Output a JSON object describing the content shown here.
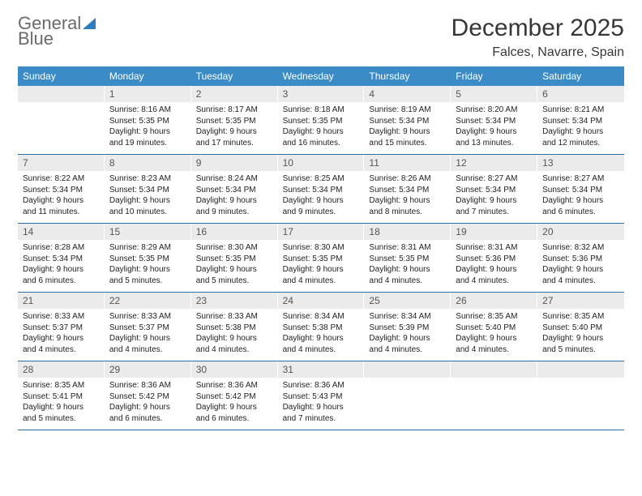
{
  "brand": {
    "part1": "General",
    "part2": "Blue"
  },
  "title": "December 2025",
  "location": "Falces, Navarre, Spain",
  "day_names": [
    "Sunday",
    "Monday",
    "Tuesday",
    "Wednesday",
    "Thursday",
    "Friday",
    "Saturday"
  ],
  "colors": {
    "header_bg": "#3b8bc7",
    "daynum_bg": "#ebebeb",
    "rule": "#2f6fa3"
  },
  "weeks": [
    [
      null,
      {
        "n": "1",
        "sr": "Sunrise: 8:16 AM",
        "ss": "Sunset: 5:35 PM",
        "d1": "Daylight: 9 hours",
        "d2": "and 19 minutes."
      },
      {
        "n": "2",
        "sr": "Sunrise: 8:17 AM",
        "ss": "Sunset: 5:35 PM",
        "d1": "Daylight: 9 hours",
        "d2": "and 17 minutes."
      },
      {
        "n": "3",
        "sr": "Sunrise: 8:18 AM",
        "ss": "Sunset: 5:35 PM",
        "d1": "Daylight: 9 hours",
        "d2": "and 16 minutes."
      },
      {
        "n": "4",
        "sr": "Sunrise: 8:19 AM",
        "ss": "Sunset: 5:34 PM",
        "d1": "Daylight: 9 hours",
        "d2": "and 15 minutes."
      },
      {
        "n": "5",
        "sr": "Sunrise: 8:20 AM",
        "ss": "Sunset: 5:34 PM",
        "d1": "Daylight: 9 hours",
        "d2": "and 13 minutes."
      },
      {
        "n": "6",
        "sr": "Sunrise: 8:21 AM",
        "ss": "Sunset: 5:34 PM",
        "d1": "Daylight: 9 hours",
        "d2": "and 12 minutes."
      }
    ],
    [
      {
        "n": "7",
        "sr": "Sunrise: 8:22 AM",
        "ss": "Sunset: 5:34 PM",
        "d1": "Daylight: 9 hours",
        "d2": "and 11 minutes."
      },
      {
        "n": "8",
        "sr": "Sunrise: 8:23 AM",
        "ss": "Sunset: 5:34 PM",
        "d1": "Daylight: 9 hours",
        "d2": "and 10 minutes."
      },
      {
        "n": "9",
        "sr": "Sunrise: 8:24 AM",
        "ss": "Sunset: 5:34 PM",
        "d1": "Daylight: 9 hours",
        "d2": "and 9 minutes."
      },
      {
        "n": "10",
        "sr": "Sunrise: 8:25 AM",
        "ss": "Sunset: 5:34 PM",
        "d1": "Daylight: 9 hours",
        "d2": "and 9 minutes."
      },
      {
        "n": "11",
        "sr": "Sunrise: 8:26 AM",
        "ss": "Sunset: 5:34 PM",
        "d1": "Daylight: 9 hours",
        "d2": "and 8 minutes."
      },
      {
        "n": "12",
        "sr": "Sunrise: 8:27 AM",
        "ss": "Sunset: 5:34 PM",
        "d1": "Daylight: 9 hours",
        "d2": "and 7 minutes."
      },
      {
        "n": "13",
        "sr": "Sunrise: 8:27 AM",
        "ss": "Sunset: 5:34 PM",
        "d1": "Daylight: 9 hours",
        "d2": "and 6 minutes."
      }
    ],
    [
      {
        "n": "14",
        "sr": "Sunrise: 8:28 AM",
        "ss": "Sunset: 5:34 PM",
        "d1": "Daylight: 9 hours",
        "d2": "and 6 minutes."
      },
      {
        "n": "15",
        "sr": "Sunrise: 8:29 AM",
        "ss": "Sunset: 5:35 PM",
        "d1": "Daylight: 9 hours",
        "d2": "and 5 minutes."
      },
      {
        "n": "16",
        "sr": "Sunrise: 8:30 AM",
        "ss": "Sunset: 5:35 PM",
        "d1": "Daylight: 9 hours",
        "d2": "and 5 minutes."
      },
      {
        "n": "17",
        "sr": "Sunrise: 8:30 AM",
        "ss": "Sunset: 5:35 PM",
        "d1": "Daylight: 9 hours",
        "d2": "and 4 minutes."
      },
      {
        "n": "18",
        "sr": "Sunrise: 8:31 AM",
        "ss": "Sunset: 5:35 PM",
        "d1": "Daylight: 9 hours",
        "d2": "and 4 minutes."
      },
      {
        "n": "19",
        "sr": "Sunrise: 8:31 AM",
        "ss": "Sunset: 5:36 PM",
        "d1": "Daylight: 9 hours",
        "d2": "and 4 minutes."
      },
      {
        "n": "20",
        "sr": "Sunrise: 8:32 AM",
        "ss": "Sunset: 5:36 PM",
        "d1": "Daylight: 9 hours",
        "d2": "and 4 minutes."
      }
    ],
    [
      {
        "n": "21",
        "sr": "Sunrise: 8:33 AM",
        "ss": "Sunset: 5:37 PM",
        "d1": "Daylight: 9 hours",
        "d2": "and 4 minutes."
      },
      {
        "n": "22",
        "sr": "Sunrise: 8:33 AM",
        "ss": "Sunset: 5:37 PM",
        "d1": "Daylight: 9 hours",
        "d2": "and 4 minutes."
      },
      {
        "n": "23",
        "sr": "Sunrise: 8:33 AM",
        "ss": "Sunset: 5:38 PM",
        "d1": "Daylight: 9 hours",
        "d2": "and 4 minutes."
      },
      {
        "n": "24",
        "sr": "Sunrise: 8:34 AM",
        "ss": "Sunset: 5:38 PM",
        "d1": "Daylight: 9 hours",
        "d2": "and 4 minutes."
      },
      {
        "n": "25",
        "sr": "Sunrise: 8:34 AM",
        "ss": "Sunset: 5:39 PM",
        "d1": "Daylight: 9 hours",
        "d2": "and 4 minutes."
      },
      {
        "n": "26",
        "sr": "Sunrise: 8:35 AM",
        "ss": "Sunset: 5:40 PM",
        "d1": "Daylight: 9 hours",
        "d2": "and 4 minutes."
      },
      {
        "n": "27",
        "sr": "Sunrise: 8:35 AM",
        "ss": "Sunset: 5:40 PM",
        "d1": "Daylight: 9 hours",
        "d2": "and 5 minutes."
      }
    ],
    [
      {
        "n": "28",
        "sr": "Sunrise: 8:35 AM",
        "ss": "Sunset: 5:41 PM",
        "d1": "Daylight: 9 hours",
        "d2": "and 5 minutes."
      },
      {
        "n": "29",
        "sr": "Sunrise: 8:36 AM",
        "ss": "Sunset: 5:42 PM",
        "d1": "Daylight: 9 hours",
        "d2": "and 6 minutes."
      },
      {
        "n": "30",
        "sr": "Sunrise: 8:36 AM",
        "ss": "Sunset: 5:42 PM",
        "d1": "Daylight: 9 hours",
        "d2": "and 6 minutes."
      },
      {
        "n": "31",
        "sr": "Sunrise: 8:36 AM",
        "ss": "Sunset: 5:43 PM",
        "d1": "Daylight: 9 hours",
        "d2": "and 7 minutes."
      },
      null,
      null,
      null
    ]
  ]
}
